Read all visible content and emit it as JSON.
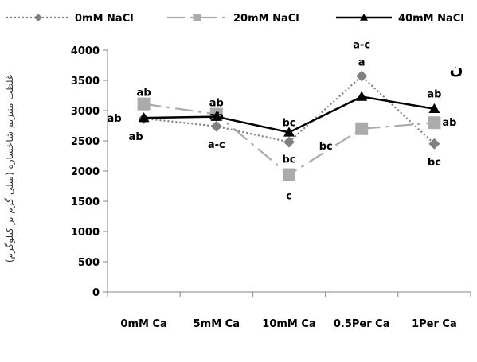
{
  "chart_data": {
    "type": "line",
    "title": "",
    "panel_label": "ن",
    "xlabel": "",
    "ylabel": "غلظت منیزیم شاخساره (میلی گرم بر کیلوگرم)",
    "categories": [
      "0mM Ca",
      "5mM Ca",
      "10mM Ca",
      "0.5Per Ca",
      "1Per Ca"
    ],
    "ylim": [
      0,
      4000
    ],
    "yticks": [
      "0",
      "500",
      "1000",
      "1500",
      "2000",
      "2500",
      "3000",
      "3500",
      "4000"
    ],
    "grid": false,
    "legend_position": "top",
    "series": [
      {
        "name": "0mM NaCl",
        "values": [
          2870,
          2740,
          2480,
          3570,
          2450
        ],
        "labels": [
          "ab",
          "a-c",
          "bc",
          "a",
          "bc"
        ],
        "color": "#808080",
        "line_style": "dotted",
        "marker": "diamond"
      },
      {
        "name": "20mM NaCl",
        "values": [
          3110,
          2940,
          1940,
          2700,
          2800
        ],
        "labels": [
          "ab",
          "ab",
          "c",
          "bc",
          "ab"
        ],
        "color": "#ababab",
        "line_style": "dash-dot",
        "marker": "square"
      },
      {
        "name": "40mM NaCl",
        "values": [
          2880,
          2900,
          2640,
          3230,
          3030
        ],
        "labels": [
          "ab",
          "ab",
          "bc",
          "a-c",
          "ab"
        ],
        "color": "#000000",
        "line_style": "solid",
        "marker": "triangle"
      }
    ]
  }
}
